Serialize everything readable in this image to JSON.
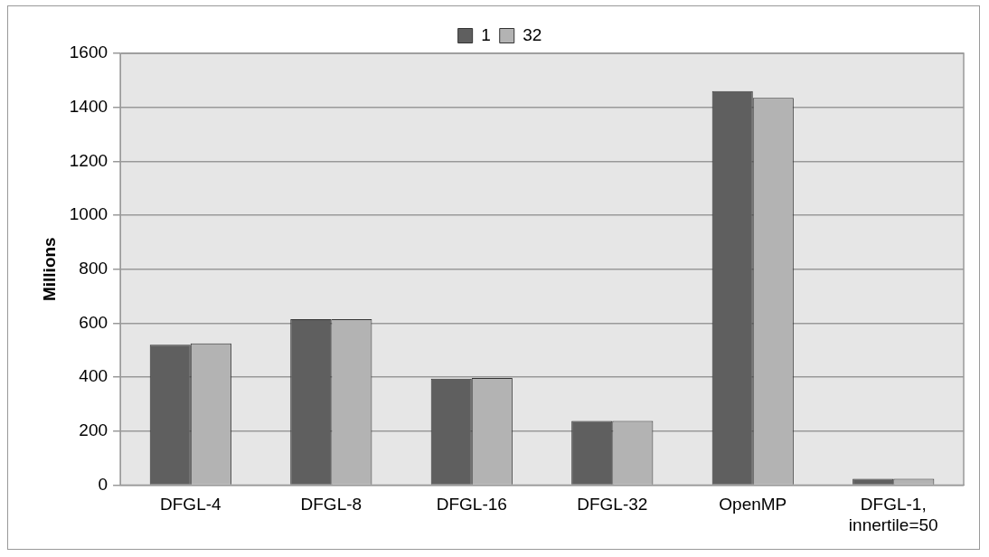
{
  "chart_data": {
    "type": "bar",
    "ylabel": "Millions",
    "categories": [
      "DFGL-4",
      "DFGL-8",
      "DFGL-16",
      "DFGL-32",
      "OpenMP",
      "DFGL-1, innertile=50"
    ],
    "series": [
      {
        "name": "1",
        "color": "#5f5f5f",
        "values": [
          520,
          615,
          394,
          238,
          1460,
          23
        ]
      },
      {
        "name": "32",
        "color": "#b3b3b3",
        "values": [
          525,
          615,
          397,
          238,
          1435,
          23
        ]
      }
    ],
    "ylim": [
      0,
      1600
    ],
    "yticks": [
      0,
      200,
      400,
      600,
      800,
      1000,
      1200,
      1400,
      1600
    ],
    "grid": "y",
    "legend": "top"
  }
}
